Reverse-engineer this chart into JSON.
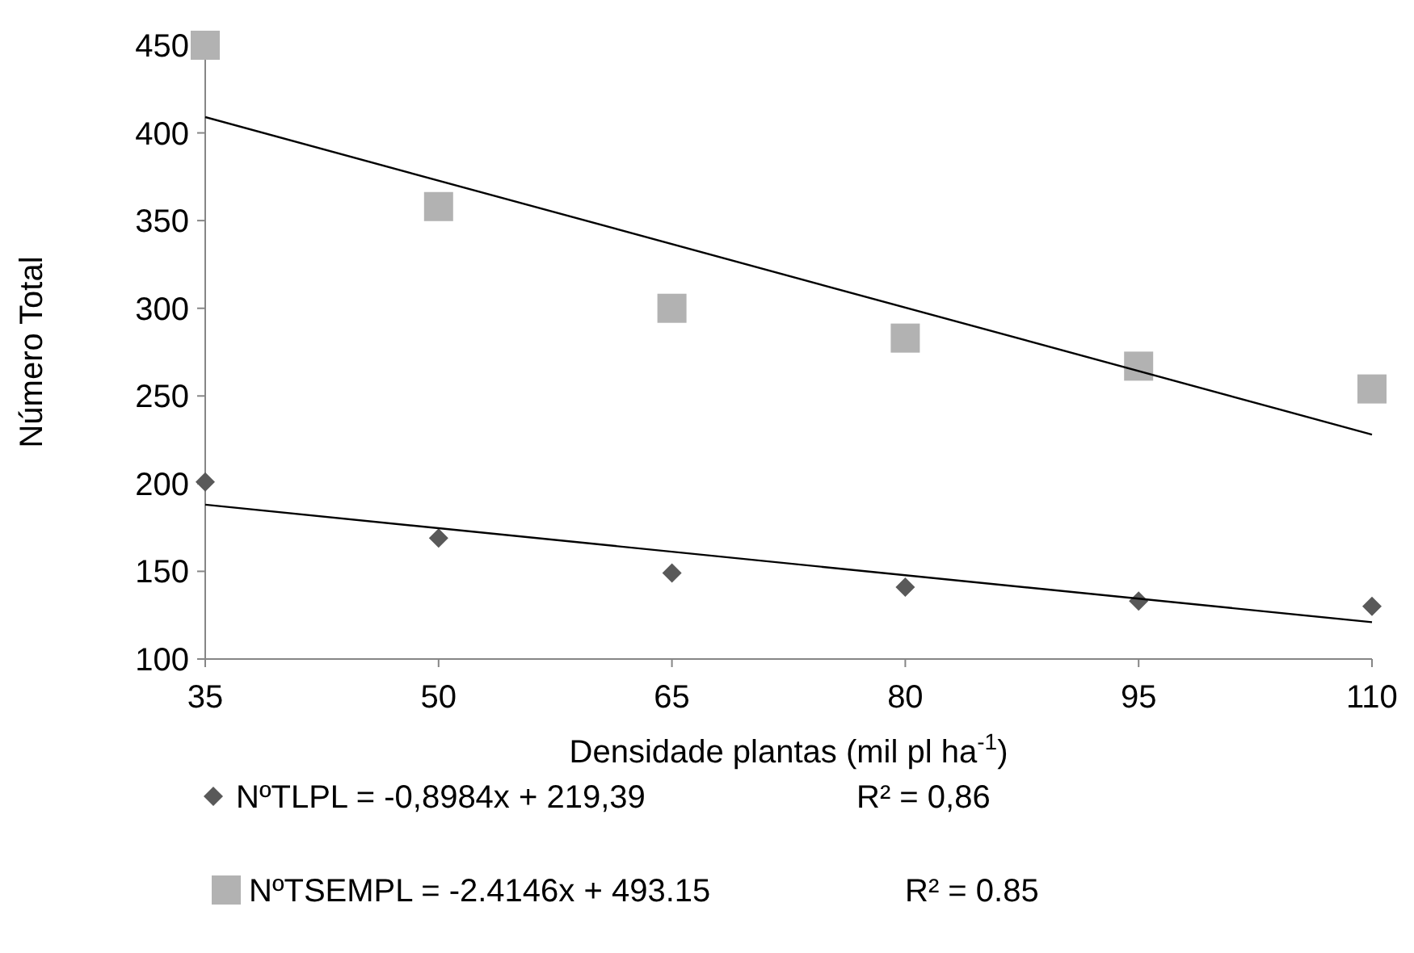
{
  "chart_data": {
    "type": "scatter",
    "xlabel": "Densidade plantas (mil pl ha$^{-1}$)",
    "ylabel": "Número Total",
    "xlim": [
      35,
      110
    ],
    "xticks": [
      35,
      50,
      65,
      80,
      95,
      110
    ],
    "ylim": [
      100,
      450
    ],
    "yticks": [
      100,
      150,
      200,
      250,
      300,
      350,
      400,
      450
    ],
    "grid": false,
    "legend": "bottom",
    "series": [
      {
        "name": "NºTLPL = -0,8984x + 219,39",
        "color": "#595959",
        "marker": "diamond",
        "x": [
          35,
          50,
          65,
          80,
          95,
          110
        ],
        "values": [
          201,
          169,
          149,
          141,
          133,
          130
        ]
      },
      {
        "name": "NºTSEMPL = -2.4146x + 493.15",
        "color": "#b2b2b2",
        "marker": "square",
        "x": [
          35,
          50,
          65,
          80,
          95,
          110
        ],
        "values": [
          450,
          358,
          300,
          283,
          267,
          254
        ]
      },
      {
        "type": "line",
        "color": "#000000",
        "x": [
          35,
          110
        ],
        "values": [
          188,
          121
        ]
      },
      {
        "type": "line",
        "color": "#000000",
        "x": [
          35,
          110
        ],
        "values": [
          409,
          228
        ]
      }
    ],
    "annotations": [
      "R² = 0,86",
      "R² = 0.85"
    ]
  }
}
